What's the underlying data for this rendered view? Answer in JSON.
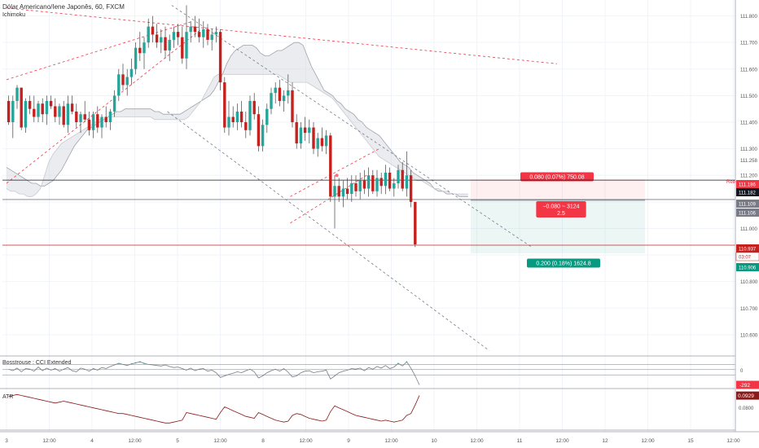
{
  "header": {
    "symbol_title": "Dólar Americano/Iene Japonês, 60, FXCM",
    "indicator_main": "Ichimoku"
  },
  "panes": {
    "cci_title": "Bosstrouse : CCI Extended",
    "atr_title": "ATR"
  },
  "chart_data": {
    "type": "candlestick",
    "instrument": "USDJPY",
    "timeframe": "60",
    "price_axis": {
      "ticks": [
        "111.800",
        "111.700",
        "111.600",
        "111.500",
        "111.400",
        "111.300",
        "111.200",
        "111.100",
        "111.000",
        "110.900",
        "110.800",
        "110.700",
        "110.600"
      ],
      "extra_labels": [
        "111.258"
      ],
      "range": [
        110.52,
        111.86
      ]
    },
    "time_axis": {
      "ticks": [
        "3",
        "12:00",
        "4",
        "12:00",
        "5",
        "12:00",
        "8",
        "12:00",
        "9",
        "12:00",
        "10",
        "12:00",
        "11",
        "12:00",
        "12",
        "12:00",
        "15",
        "12:00"
      ]
    },
    "price_tags": [
      {
        "label": "111.186",
        "color": "#f23645",
        "text_color": "#ffffff"
      },
      {
        "label": "111.182",
        "color": "#131722",
        "text_color": "#ffffff"
      },
      {
        "label": "111.109",
        "color": "#787b86",
        "text_color": "#ffffff"
      },
      {
        "label": "111.106",
        "color": "#787b86",
        "text_color": "#ffffff"
      },
      {
        "label": "110.937",
        "color": "#c5221f",
        "text_color": "#ffffff"
      },
      {
        "label": "03:07",
        "color": "#ffffff",
        "text_color": "#c5221f"
      },
      {
        "label": "110.906",
        "color": "#089981",
        "text_color": "#ffffff"
      }
    ],
    "position_tool": {
      "stop_label": "0.080 (0.07%) 750.08",
      "stop_price": 111.186,
      "entry_label": "−0.080 ~ 3124",
      "entry_sub": "2.5",
      "entry_price": 111.106,
      "target_label": "0.200 (0.18%) 1624.8",
      "target_price": 110.906,
      "marker": "Ree"
    },
    "candles": [
      [
        111.48,
        111.5,
        111.39,
        111.4
      ],
      [
        111.4,
        111.5,
        111.34,
        111.48
      ],
      [
        111.48,
        111.54,
        111.45,
        111.53
      ],
      [
        111.53,
        111.53,
        111.37,
        111.38
      ],
      [
        111.38,
        111.49,
        111.36,
        111.48
      ],
      [
        111.48,
        111.5,
        111.43,
        111.45
      ],
      [
        111.45,
        111.5,
        111.4,
        111.42
      ],
      [
        111.42,
        111.48,
        111.4,
        111.47
      ],
      [
        111.47,
        111.49,
        111.4,
        111.43
      ],
      [
        111.43,
        111.5,
        111.39,
        111.48
      ],
      [
        111.48,
        111.5,
        111.45,
        111.46
      ],
      [
        111.46,
        111.49,
        111.4,
        111.42
      ],
      [
        111.42,
        111.47,
        111.39,
        111.46
      ],
      [
        111.46,
        111.48,
        111.38,
        111.39
      ],
      [
        111.39,
        111.5,
        111.36,
        111.47
      ],
      [
        111.47,
        111.5,
        111.43,
        111.44
      ],
      [
        111.44,
        111.47,
        111.38,
        111.4
      ],
      [
        111.4,
        111.44,
        111.36,
        111.43
      ],
      [
        111.43,
        111.48,
        111.4,
        111.41
      ],
      [
        111.41,
        111.44,
        111.35,
        111.37
      ],
      [
        111.37,
        111.44,
        111.34,
        111.43
      ],
      [
        111.43,
        111.46,
        111.36,
        111.38
      ],
      [
        111.38,
        111.43,
        111.34,
        111.42
      ],
      [
        111.42,
        111.46,
        111.38,
        111.4
      ],
      [
        111.4,
        111.45,
        111.37,
        111.44
      ],
      [
        111.44,
        111.52,
        111.42,
        111.5
      ],
      [
        111.5,
        111.6,
        111.48,
        111.58
      ],
      [
        111.58,
        111.62,
        111.52,
        111.54
      ],
      [
        111.54,
        111.6,
        111.5,
        111.57
      ],
      [
        111.57,
        111.64,
        111.54,
        111.6
      ],
      [
        111.6,
        111.7,
        111.58,
        111.68
      ],
      [
        111.68,
        111.74,
        111.63,
        111.66
      ],
      [
        111.66,
        111.72,
        111.6,
        111.7
      ],
      [
        111.7,
        111.79,
        111.68,
        111.76
      ],
      [
        111.76,
        111.8,
        111.7,
        111.73
      ],
      [
        111.73,
        111.77,
        111.68,
        111.7
      ],
      [
        111.7,
        111.75,
        111.66,
        111.72
      ],
      [
        111.72,
        111.76,
        111.64,
        111.67
      ],
      [
        111.67,
        111.73,
        111.63,
        111.71
      ],
      [
        111.71,
        111.76,
        111.68,
        111.74
      ],
      [
        111.74,
        111.77,
        111.69,
        111.72
      ],
      [
        111.72,
        111.76,
        111.62,
        111.64
      ],
      [
        111.64,
        111.84,
        111.6,
        111.74
      ],
      [
        111.74,
        111.78,
        111.7,
        111.76
      ],
      [
        111.76,
        111.8,
        111.72,
        111.74
      ],
      [
        111.74,
        111.79,
        111.7,
        111.72
      ],
      [
        111.72,
        111.78,
        111.68,
        111.75
      ],
      [
        111.75,
        111.77,
        111.69,
        111.71
      ],
      [
        111.71,
        111.75,
        111.67,
        111.73
      ],
      [
        111.73,
        111.76,
        111.7,
        111.74
      ],
      [
        111.74,
        111.75,
        111.52,
        111.55
      ],
      [
        111.55,
        111.57,
        111.36,
        111.38
      ],
      [
        111.38,
        111.48,
        111.35,
        111.42
      ],
      [
        111.42,
        111.46,
        111.38,
        111.4
      ],
      [
        111.4,
        111.47,
        111.37,
        111.44
      ],
      [
        111.44,
        111.48,
        111.38,
        111.4
      ],
      [
        111.4,
        111.44,
        111.34,
        111.37
      ],
      [
        111.37,
        111.5,
        111.35,
        111.48
      ],
      [
        111.48,
        111.51,
        111.41,
        111.43
      ],
      [
        111.43,
        111.46,
        111.29,
        111.31
      ],
      [
        111.31,
        111.41,
        111.29,
        111.39
      ],
      [
        111.39,
        111.47,
        111.36,
        111.45
      ],
      [
        111.45,
        111.53,
        111.43,
        111.51
      ],
      [
        111.51,
        111.55,
        111.47,
        111.53
      ],
      [
        111.53,
        111.56,
        111.46,
        111.48
      ],
      [
        111.48,
        111.52,
        111.44,
        111.5
      ],
      [
        111.5,
        111.58,
        111.47,
        111.52
      ],
      [
        111.52,
        111.55,
        111.38,
        111.4
      ],
      [
        111.4,
        111.43,
        111.3,
        111.32
      ],
      [
        111.32,
        111.4,
        111.3,
        111.38
      ],
      [
        111.38,
        111.42,
        111.33,
        111.36
      ],
      [
        111.36,
        111.41,
        111.32,
        111.38
      ],
      [
        111.38,
        111.4,
        111.28,
        111.3
      ],
      [
        111.3,
        111.36,
        111.27,
        111.34
      ],
      [
        111.34,
        111.38,
        111.29,
        111.31
      ],
      [
        111.31,
        111.37,
        111.28,
        111.35
      ],
      [
        111.35,
        111.36,
        111.1,
        111.12
      ],
      [
        111.12,
        111.2,
        111.0,
        111.16
      ],
      [
        111.16,
        111.19,
        111.1,
        111.12
      ],
      [
        111.12,
        111.18,
        111.08,
        111.15
      ],
      [
        111.15,
        111.19,
        111.11,
        111.13
      ],
      [
        111.13,
        111.2,
        111.1,
        111.17
      ],
      [
        111.17,
        111.2,
        111.12,
        111.14
      ],
      [
        111.14,
        111.21,
        111.11,
        111.18
      ],
      [
        111.18,
        111.22,
        111.13,
        111.15
      ],
      [
        111.15,
        111.23,
        111.12,
        111.2
      ],
      [
        111.2,
        111.22,
        111.13,
        111.14
      ],
      [
        111.14,
        111.22,
        111.12,
        111.19
      ],
      [
        111.19,
        111.21,
        111.13,
        111.16
      ],
      [
        111.16,
        111.24,
        111.13,
        111.21
      ],
      [
        111.21,
        111.23,
        111.14,
        111.15
      ],
      [
        111.15,
        111.19,
        111.12,
        111.17
      ],
      [
        111.17,
        111.24,
        111.15,
        111.22
      ],
      [
        111.22,
        111.25,
        111.14,
        111.15
      ],
      [
        111.15,
        111.29,
        111.12,
        111.2
      ],
      [
        111.2,
        111.22,
        111.08,
        111.1
      ],
      [
        111.1,
        111.1,
        110.93,
        110.94
      ]
    ],
    "ichimoku_cloud": {
      "span_a": [
        111.23,
        111.22,
        111.21,
        111.2,
        111.19,
        111.18,
        111.17,
        111.17,
        111.16,
        111.16,
        111.17,
        111.18,
        111.2,
        111.22,
        111.25,
        111.28,
        111.31,
        111.33,
        111.35,
        111.37,
        111.38,
        111.39,
        111.4,
        111.41,
        111.42,
        111.43,
        111.44,
        111.44,
        111.45,
        111.45,
        111.45,
        111.45,
        111.45,
        111.45,
        111.45,
        111.44,
        111.44,
        111.43,
        111.43,
        111.43,
        111.43,
        111.43,
        111.44,
        111.45,
        111.46,
        111.47,
        111.48,
        111.49,
        111.5,
        111.52,
        111.55,
        111.58,
        111.62,
        111.65,
        111.67,
        111.68,
        111.69,
        111.69,
        111.69,
        111.68,
        111.66,
        111.65,
        111.65,
        111.66,
        111.67,
        111.67,
        111.68,
        111.69,
        111.7,
        111.7,
        111.69,
        111.65,
        111.61,
        111.58,
        111.55,
        111.52,
        111.51,
        111.5,
        111.48,
        111.47,
        111.45,
        111.44,
        111.43,
        111.41,
        111.4,
        111.38,
        111.37,
        111.36,
        111.35,
        111.33,
        111.31,
        111.29,
        111.27,
        111.25,
        111.24,
        111.23,
        111.21,
        111.2,
        111.19,
        111.18,
        111.17,
        111.15,
        111.14,
        111.14,
        111.13,
        111.13,
        111.13,
        111.12,
        111.12,
        111.12
      ],
      "span_b": [
        111.15,
        111.14,
        111.14,
        111.13,
        111.13,
        111.12,
        111.12,
        111.13,
        111.15,
        111.2,
        111.25,
        111.28,
        111.3,
        111.32,
        111.33,
        111.34,
        111.35,
        111.36,
        111.37,
        111.38,
        111.39,
        111.4,
        111.41,
        111.41,
        111.42,
        111.42,
        111.42,
        111.42,
        111.42,
        111.42,
        111.42,
        111.42,
        111.42,
        111.42,
        111.42,
        111.41,
        111.41,
        111.41,
        111.41,
        111.41,
        111.41,
        111.41,
        111.41,
        111.42,
        111.44,
        111.46,
        111.48,
        111.51,
        111.54,
        111.57,
        111.58,
        111.58,
        111.58,
        111.58,
        111.58,
        111.58,
        111.58,
        111.58,
        111.58,
        111.58,
        111.58,
        111.58,
        111.58,
        111.58,
        111.58,
        111.57,
        111.56,
        111.55,
        111.55,
        111.55,
        111.55,
        111.55,
        111.54,
        111.53,
        111.52,
        111.51,
        111.5,
        111.49,
        111.47,
        111.45,
        111.43,
        111.41,
        111.39,
        111.37,
        111.35,
        111.33,
        111.31,
        111.29,
        111.27,
        111.26,
        111.25,
        111.24,
        111.23,
        111.22,
        111.21,
        111.2,
        111.19,
        111.18,
        111.18,
        111.17,
        111.16,
        111.15,
        111.15,
        111.14,
        111.14,
        111.13,
        111.13,
        111.13,
        111.13,
        111.13
      ]
    },
    "lines": [
      {
        "kind": "trendline",
        "color": "#f23645",
        "style": "dashed",
        "from": [
          0,
          111.56
        ],
        "to": [
          44,
          111.78
        ]
      },
      {
        "kind": "trendline",
        "color": "#f23645",
        "style": "dashed",
        "from": [
          0,
          111.83
        ],
        "to": [
          130,
          111.62
        ]
      },
      {
        "kind": "trendline",
        "color": "#f23645",
        "style": "dashed",
        "from": [
          0,
          111.17
        ],
        "to": [
          46,
          111.75
        ]
      },
      {
        "kind": "trendline",
        "color": "#787b86",
        "style": "dashed",
        "from": [
          39,
          111.84
        ],
        "to": [
          124,
          110.93
        ]
      },
      {
        "kind": "trendline",
        "color": "#787b86",
        "style": "dashed",
        "from": [
          38,
          111.44
        ],
        "to": [
          114,
          110.54
        ]
      },
      {
        "kind": "trendline",
        "color": "#f23645",
        "style": "dashed",
        "from": [
          67,
          111.12
        ],
        "to": [
          88,
          111.3
        ]
      },
      {
        "kind": "trendline",
        "color": "#f23645",
        "style": "dashed",
        "from": [
          67,
          111.02
        ],
        "to": [
          85,
          111.2
        ]
      },
      {
        "kind": "hline",
        "color": "#131722",
        "price": 111.182
      },
      {
        "kind": "hline",
        "color": "#787b86",
        "price": 111.109
      },
      {
        "kind": "hline",
        "color": "#c5221f",
        "price": 110.937
      }
    ],
    "cci": {
      "label": "-292",
      "values": [
        10,
        -20,
        30,
        -40,
        20,
        10,
        -30,
        50,
        -20,
        30,
        -10,
        20,
        -30,
        10,
        40,
        -20,
        -40,
        30,
        10,
        -30,
        20,
        -10,
        40,
        20,
        60,
        90,
        120,
        100,
        80,
        110,
        130,
        150,
        120,
        100,
        90,
        80,
        70,
        90,
        60,
        40,
        50,
        20,
        -10,
        30,
        -20,
        10,
        20,
        -30,
        -10,
        -60,
        -150,
        -120,
        -90,
        -70,
        -40,
        -60,
        -20,
        10,
        -40,
        -160,
        -120,
        -60,
        -20,
        10,
        -30,
        20,
        -50,
        -140,
        -120,
        -60,
        -30,
        -20,
        -60,
        -40,
        -30,
        -10,
        -180,
        -120,
        -60,
        -30,
        -10,
        20,
        10,
        30,
        -20,
        40,
        10,
        60,
        30,
        80,
        20,
        50,
        120,
        70,
        150,
        30,
        -120,
        -292
      ],
      "range": [
        -300,
        200
      ]
    },
    "atr": {
      "label": "0.0929",
      "tick": "0.0800",
      "values": [
        0.092,
        0.093,
        0.094,
        0.093,
        0.092,
        0.091,
        0.09,
        0.089,
        0.088,
        0.087,
        0.086,
        0.085,
        0.086,
        0.087,
        0.086,
        0.085,
        0.084,
        0.083,
        0.082,
        0.081,
        0.08,
        0.079,
        0.078,
        0.077,
        0.076,
        0.075,
        0.074,
        0.074,
        0.073,
        0.072,
        0.071,
        0.07,
        0.069,
        0.068,
        0.067,
        0.066,
        0.065,
        0.064,
        0.064,
        0.065,
        0.066,
        0.067,
        0.075,
        0.074,
        0.073,
        0.072,
        0.071,
        0.07,
        0.069,
        0.068,
        0.075,
        0.081,
        0.079,
        0.077,
        0.075,
        0.073,
        0.071,
        0.07,
        0.069,
        0.075,
        0.073,
        0.071,
        0.069,
        0.067,
        0.066,
        0.065,
        0.066,
        0.072,
        0.074,
        0.073,
        0.071,
        0.069,
        0.068,
        0.067,
        0.066,
        0.067,
        0.076,
        0.082,
        0.08,
        0.078,
        0.076,
        0.074,
        0.072,
        0.071,
        0.07,
        0.069,
        0.068,
        0.067,
        0.066,
        0.067,
        0.066,
        0.065,
        0.066,
        0.067,
        0.072,
        0.074,
        0.083,
        0.0929
      ],
      "range": [
        0.06,
        0.096
      ]
    }
  }
}
